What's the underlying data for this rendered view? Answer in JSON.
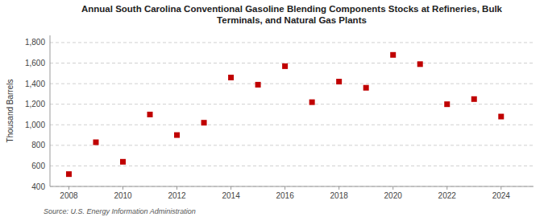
{
  "chart_data": {
    "type": "scatter",
    "title": "Annual South Carolina Conventional Gasoline Blending Components Stocks at Refineries, Bulk\nTerminals, and Natural Gas Plants",
    "ylabel": "Thousand Barrels",
    "annotations": [
      "Source: U.S. Energy Information Administration"
    ],
    "x": [
      2008,
      2009,
      2010,
      2011,
      2012,
      2013,
      2014,
      2015,
      2016,
      2017,
      2018,
      2019,
      2020,
      2021,
      2022,
      2023,
      2024
    ],
    "values": [
      520,
      830,
      640,
      1100,
      900,
      1020,
      1460,
      1390,
      1570,
      1220,
      1420,
      1360,
      1680,
      1590,
      1200,
      1250,
      1080
    ],
    "color": "#c00000",
    "marker": "square",
    "xlim": [
      2007.3,
      2025.2
    ],
    "xticks": [
      2008,
      2010,
      2012,
      2014,
      2016,
      2018,
      2020,
      2022,
      2024
    ],
    "ylim": [
      400,
      1870
    ],
    "yticks": [
      400,
      600,
      800,
      {
        "value": 1000,
        "label": "1,000"
      },
      {
        "value": 1200,
        "label": "1,200"
      },
      {
        "value": 1400,
        "label": "1,400"
      },
      {
        "value": 1600,
        "label": "1,600"
      },
      {
        "value": 1800,
        "label": "1,800"
      }
    ],
    "grid": true
  }
}
